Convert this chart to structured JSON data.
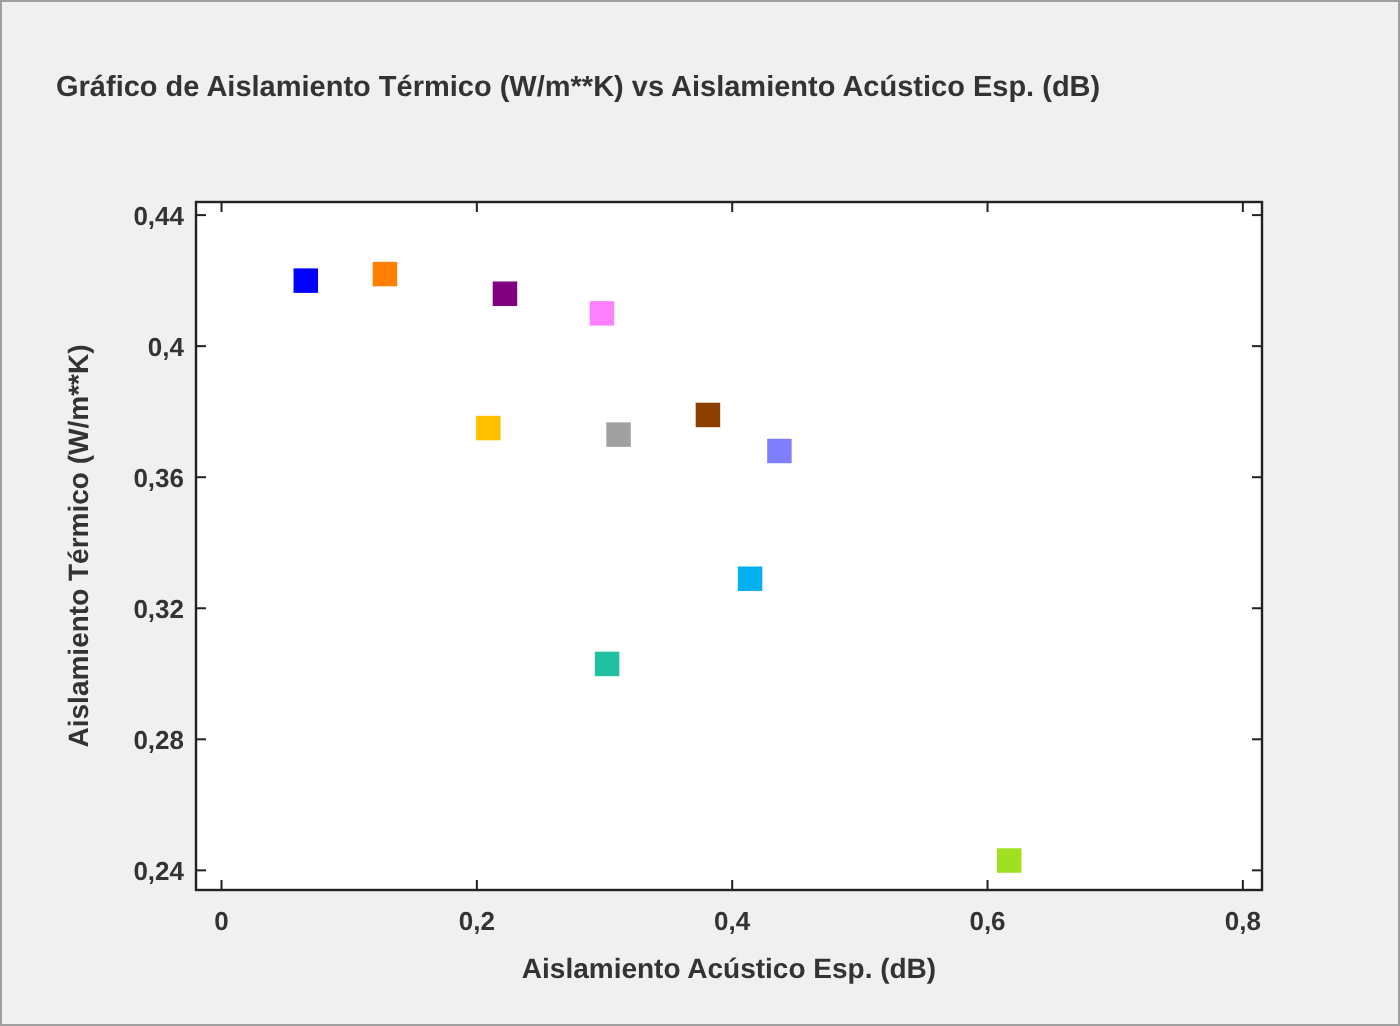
{
  "chart_data": {
    "type": "scatter",
    "title": "Gráfico de Aislamiento Térmico (W/m**K) vs Aislamiento Acústico Esp. (dB)",
    "xlabel": "Aislamiento Acústico Esp. (dB)",
    "ylabel": "Aislamiento Térmico (W/m**K)",
    "x": [
      0.066,
      0.128,
      0.222,
      0.298,
      0.209,
      0.311,
      0.381,
      0.437,
      0.414,
      0.302,
      0.617
    ],
    "values": [
      0.42,
      0.422,
      0.416,
      0.41,
      0.375,
      0.373,
      0.379,
      0.368,
      0.329,
      0.303,
      0.243
    ],
    "colors": [
      "#0000ff",
      "#ff8000",
      "#800080",
      "#ff80ff",
      "#ffc000",
      "#a0a0a0",
      "#8b4000",
      "#8080ff",
      "#00b0f0",
      "#20c0a0",
      "#a0e020"
    ],
    "marker": "square",
    "xlim": [
      -0.02,
      0.815
    ],
    "xticks": [
      {
        "value": 0,
        "label": "0"
      },
      {
        "value": 0.2,
        "label": "0,2"
      },
      {
        "value": 0.4,
        "label": "0,4"
      },
      {
        "value": 0.6,
        "label": "0,6"
      },
      {
        "value": 0.8,
        "label": "0,8"
      }
    ],
    "ylim": [
      0.234,
      0.444
    ],
    "yticks": [
      {
        "value": 0.24,
        "label": "0,24"
      },
      {
        "value": 0.28,
        "label": "0,28"
      },
      {
        "value": 0.32,
        "label": "0,32"
      },
      {
        "value": 0.36,
        "label": "0,36"
      },
      {
        "value": 0.4,
        "label": "0,4"
      },
      {
        "value": 0.44,
        "label": "0,44"
      }
    ]
  }
}
